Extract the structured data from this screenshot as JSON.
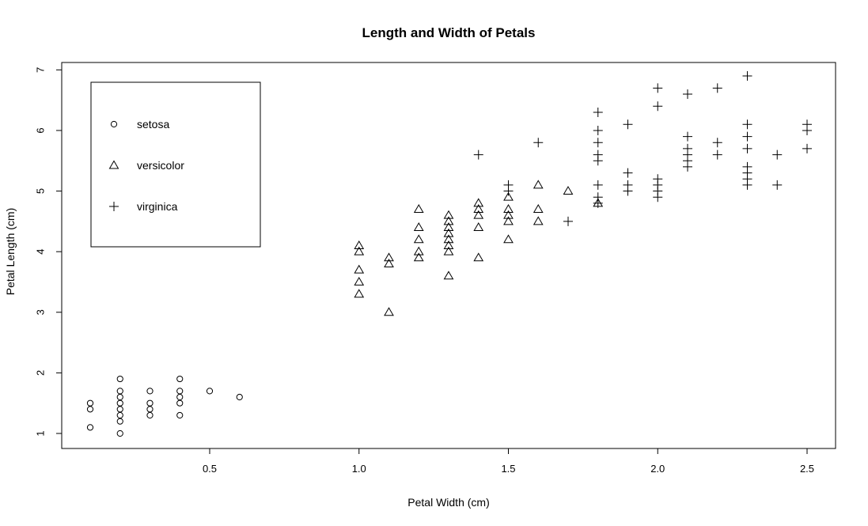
{
  "chart_data": {
    "type": "scatter",
    "title": "Length and Width of Petals",
    "xlabel": "Petal Width (cm)",
    "ylabel": "Petal Length (cm)",
    "xlim": [
      0.1,
      2.5
    ],
    "ylim": [
      1.0,
      6.9
    ],
    "xticks": [
      "0.5",
      "1.0",
      "1.5",
      "2.0",
      "2.5"
    ],
    "xtick_values": [
      0.5,
      1.0,
      1.5,
      2.0,
      2.5
    ],
    "yticks": [
      "1",
      "2",
      "3",
      "4",
      "5",
      "6",
      "7"
    ],
    "ytick_values": [
      1,
      2,
      3,
      4,
      5,
      6,
      7
    ],
    "grid": false,
    "legend_position": "top-left",
    "series": [
      {
        "name": "setosa",
        "marker": "circle",
        "points": [
          [
            0.1,
            1.1
          ],
          [
            0.1,
            1.4
          ],
          [
            0.1,
            1.5
          ],
          [
            0.2,
            1.0
          ],
          [
            0.2,
            1.2
          ],
          [
            0.2,
            1.3
          ],
          [
            0.2,
            1.4
          ],
          [
            0.2,
            1.5
          ],
          [
            0.2,
            1.6
          ],
          [
            0.2,
            1.7
          ],
          [
            0.2,
            1.9
          ],
          [
            0.3,
            1.3
          ],
          [
            0.3,
            1.4
          ],
          [
            0.3,
            1.5
          ],
          [
            0.3,
            1.7
          ],
          [
            0.4,
            1.3
          ],
          [
            0.4,
            1.5
          ],
          [
            0.4,
            1.6
          ],
          [
            0.4,
            1.7
          ],
          [
            0.4,
            1.9
          ],
          [
            0.5,
            1.7
          ],
          [
            0.6,
            1.6
          ]
        ]
      },
      {
        "name": "versicolor",
        "marker": "triangle",
        "points": [
          [
            1.0,
            3.3
          ],
          [
            1.0,
            3.5
          ],
          [
            1.0,
            3.7
          ],
          [
            1.0,
            4.0
          ],
          [
            1.0,
            4.1
          ],
          [
            1.1,
            3.0
          ],
          [
            1.1,
            3.8
          ],
          [
            1.1,
            3.9
          ],
          [
            1.2,
            3.9
          ],
          [
            1.2,
            4.0
          ],
          [
            1.2,
            4.2
          ],
          [
            1.2,
            4.4
          ],
          [
            1.2,
            4.7
          ],
          [
            1.3,
            3.6
          ],
          [
            1.3,
            4.0
          ],
          [
            1.3,
            4.1
          ],
          [
            1.3,
            4.2
          ],
          [
            1.3,
            4.3
          ],
          [
            1.3,
            4.4
          ],
          [
            1.3,
            4.5
          ],
          [
            1.3,
            4.6
          ],
          [
            1.4,
            3.9
          ],
          [
            1.4,
            4.4
          ],
          [
            1.4,
            4.6
          ],
          [
            1.4,
            4.7
          ],
          [
            1.4,
            4.8
          ],
          [
            1.5,
            4.2
          ],
          [
            1.5,
            4.5
          ],
          [
            1.5,
            4.6
          ],
          [
            1.5,
            4.7
          ],
          [
            1.5,
            4.9
          ],
          [
            1.6,
            4.5
          ],
          [
            1.6,
            4.7
          ],
          [
            1.6,
            5.1
          ],
          [
            1.7,
            5.0
          ],
          [
            1.8,
            4.8
          ]
        ]
      },
      {
        "name": "virginica",
        "marker": "plus",
        "points": [
          [
            1.4,
            5.6
          ],
          [
            1.5,
            5.0
          ],
          [
            1.5,
            5.1
          ],
          [
            1.6,
            5.8
          ],
          [
            1.7,
            4.5
          ],
          [
            1.8,
            4.8
          ],
          [
            1.8,
            4.9
          ],
          [
            1.8,
            5.1
          ],
          [
            1.8,
            5.5
          ],
          [
            1.8,
            5.6
          ],
          [
            1.8,
            5.8
          ],
          [
            1.8,
            6.0
          ],
          [
            1.8,
            6.3
          ],
          [
            1.9,
            5.0
          ],
          [
            1.9,
            5.1
          ],
          [
            1.9,
            5.3
          ],
          [
            1.9,
            6.1
          ],
          [
            2.0,
            4.9
          ],
          [
            2.0,
            5.0
          ],
          [
            2.0,
            5.1
          ],
          [
            2.0,
            5.2
          ],
          [
            2.0,
            6.4
          ],
          [
            2.0,
            6.7
          ],
          [
            2.1,
            5.4
          ],
          [
            2.1,
            5.5
          ],
          [
            2.1,
            5.6
          ],
          [
            2.1,
            5.7
          ],
          [
            2.1,
            5.9
          ],
          [
            2.1,
            6.6
          ],
          [
            2.2,
            5.6
          ],
          [
            2.2,
            5.8
          ],
          [
            2.2,
            6.7
          ],
          [
            2.3,
            5.1
          ],
          [
            2.3,
            5.2
          ],
          [
            2.3,
            5.3
          ],
          [
            2.3,
            5.4
          ],
          [
            2.3,
            5.7
          ],
          [
            2.3,
            5.9
          ],
          [
            2.3,
            6.1
          ],
          [
            2.3,
            6.9
          ],
          [
            2.4,
            5.1
          ],
          [
            2.4,
            5.6
          ],
          [
            2.5,
            5.7
          ],
          [
            2.5,
            6.0
          ],
          [
            2.5,
            6.1
          ]
        ]
      }
    ]
  }
}
